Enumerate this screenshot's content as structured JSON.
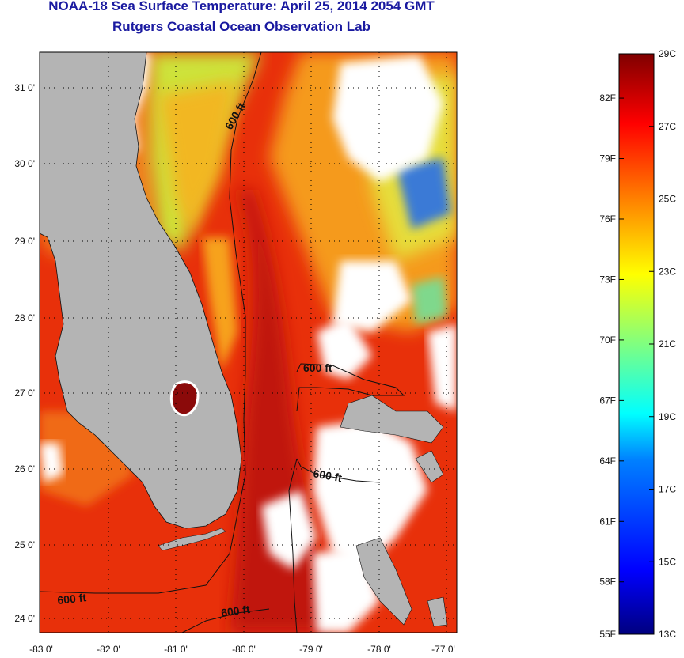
{
  "header": {
    "title": "NOAA-18 Sea Surface Temperature:  April 25, 2014 2054 GMT",
    "subtitle": "Rutgers Coastal Ocean Observation Lab"
  },
  "map": {
    "lat_ticks": [
      "31 0'",
      "30 0'",
      "29 0'",
      "28 0'",
      "27 0'",
      "26 0'",
      "25 0'",
      "24 0'"
    ],
    "lon_ticks": [
      "-83 0'",
      "-82 0'",
      "-81 0'",
      "-80 0'",
      "-79 0'",
      "-78 0'",
      "-77 0'"
    ],
    "contour_labels": [
      "600 ft",
      "600 ft",
      "600 ft",
      "600 ft",
      "600 ft"
    ]
  },
  "colorbar": {
    "celsius_labels": [
      "29C",
      "27C",
      "25C",
      "23C",
      "21C",
      "19C",
      "17C",
      "15C",
      "13C"
    ],
    "fahrenheit_labels": [
      "82F",
      "79F",
      "76F",
      "73F",
      "70F",
      "67F",
      "64F",
      "61F",
      "58F",
      "55F"
    ],
    "colors": [
      "#00007f",
      "#0000ff",
      "#0080ff",
      "#00ffff",
      "#80ff80",
      "#ffff00",
      "#ff8000",
      "#ff0000",
      "#7f0000"
    ]
  },
  "colors": {
    "title": "#1a1aa0",
    "land": "#b4b4b4",
    "cloud": "#ffffff",
    "gulf_stream": "#e32200"
  }
}
